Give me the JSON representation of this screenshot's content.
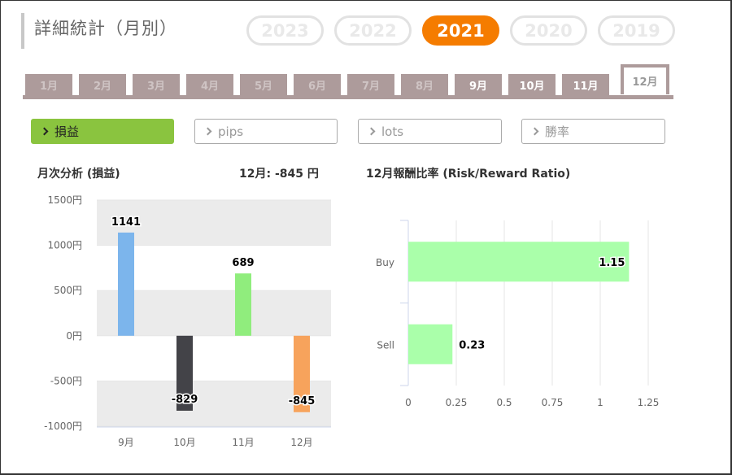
{
  "header": {
    "title": "詳細統計（月別）"
  },
  "years": [
    {
      "label": "2023",
      "active": false
    },
    {
      "label": "2022",
      "active": false
    },
    {
      "label": "2021",
      "active": true
    },
    {
      "label": "2020",
      "active": false
    },
    {
      "label": "2019",
      "active": false
    }
  ],
  "months": [
    {
      "label": "1月",
      "enabled": false
    },
    {
      "label": "2月",
      "enabled": false
    },
    {
      "label": "3月",
      "enabled": false
    },
    {
      "label": "4月",
      "enabled": false
    },
    {
      "label": "5月",
      "enabled": false
    },
    {
      "label": "6月",
      "enabled": false
    },
    {
      "label": "7月",
      "enabled": false
    },
    {
      "label": "8月",
      "enabled": false
    },
    {
      "label": "9月",
      "enabled": true
    },
    {
      "label": "10月",
      "enabled": true
    },
    {
      "label": "11月",
      "enabled": true
    },
    {
      "label": "12月",
      "enabled": true,
      "active": true
    }
  ],
  "filters": [
    {
      "label": "損益",
      "active": true
    },
    {
      "label": "pips",
      "active": false
    },
    {
      "label": "lots",
      "active": false
    },
    {
      "label": "勝率",
      "active": false
    }
  ],
  "monthly": {
    "title": "月次分析 (損益)",
    "summary": "12月:  -845 円"
  },
  "ratio": {
    "title": "12月報酬比率 (Risk/Reward Ratio)"
  },
  "chart_data": [
    {
      "type": "bar",
      "categories": [
        "9月",
        "10月",
        "11月",
        "12月"
      ],
      "values": [
        1141,
        -829,
        689,
        -845
      ],
      "value_labels": [
        "1141",
        "-829",
        "689",
        "-845"
      ],
      "colors": [
        "#7cb5ec",
        "#434348",
        "#90ed7d",
        "#f7a35c"
      ],
      "ylim": [
        -1000,
        1500
      ],
      "yticks": [
        1500,
        1000,
        500,
        0,
        -500,
        -1000
      ],
      "ytick_labels": [
        "1500円",
        "1000円",
        "500円",
        "0円",
        "-500円",
        "-1000円"
      ],
      "grid": "alternating bands"
    },
    {
      "type": "bar",
      "orientation": "horizontal",
      "categories": [
        "Buy",
        "Sell"
      ],
      "values": [
        1.15,
        0.23
      ],
      "value_labels": [
        "1.15",
        "0.23"
      ],
      "color": "#aaffaa",
      "xlim": [
        0,
        1.25
      ],
      "xticks": [
        0,
        0.25,
        0.5,
        0.75,
        1,
        1.25
      ],
      "xtick_labels": [
        "0",
        "0.25",
        "0.5",
        "0.75",
        "1",
        "1.25"
      ],
      "grid": true
    }
  ]
}
